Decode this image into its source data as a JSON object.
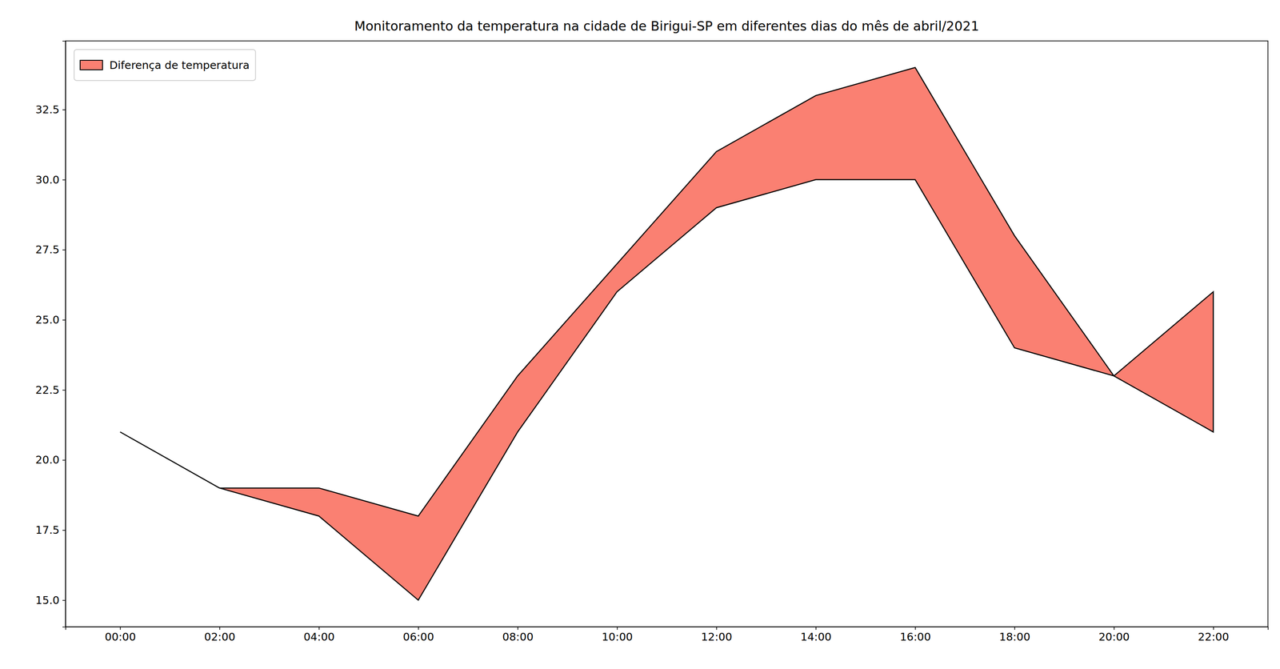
{
  "chart_data": {
    "type": "area",
    "title": "Monitoramento da temperatura na cidade de Birigui-SP em diferentes dias do mês de abril/2021",
    "categories": [
      "00:00",
      "02:00",
      "04:00",
      "06:00",
      "08:00",
      "10:00",
      "12:00",
      "14:00",
      "16:00",
      "18:00",
      "20:00",
      "22:00"
    ],
    "series": [
      {
        "name": "Diferença de temperatura",
        "color": "#fa8072",
        "upper": [
          21,
          19,
          19,
          18,
          23,
          27,
          31,
          33,
          34,
          28,
          23,
          26
        ],
        "lower": [
          21,
          19,
          18,
          15,
          21,
          26,
          29,
          30,
          30,
          24,
          23,
          21
        ]
      }
    ],
    "ylim": [
      14.05,
      34.95
    ],
    "yticks": [
      {
        "value": 15,
        "label": "15.0"
      },
      {
        "value": 17.5,
        "label": "17.5"
      },
      {
        "value": 20,
        "label": "20.0"
      },
      {
        "value": 22.5,
        "label": "22.5"
      },
      {
        "value": 25,
        "label": "25.0"
      },
      {
        "value": 27.5,
        "label": "27.5"
      },
      {
        "value": 30,
        "label": "30.0"
      },
      {
        "value": 32.5,
        "label": "32.5"
      }
    ],
    "grid": false,
    "legend": "upper left"
  }
}
